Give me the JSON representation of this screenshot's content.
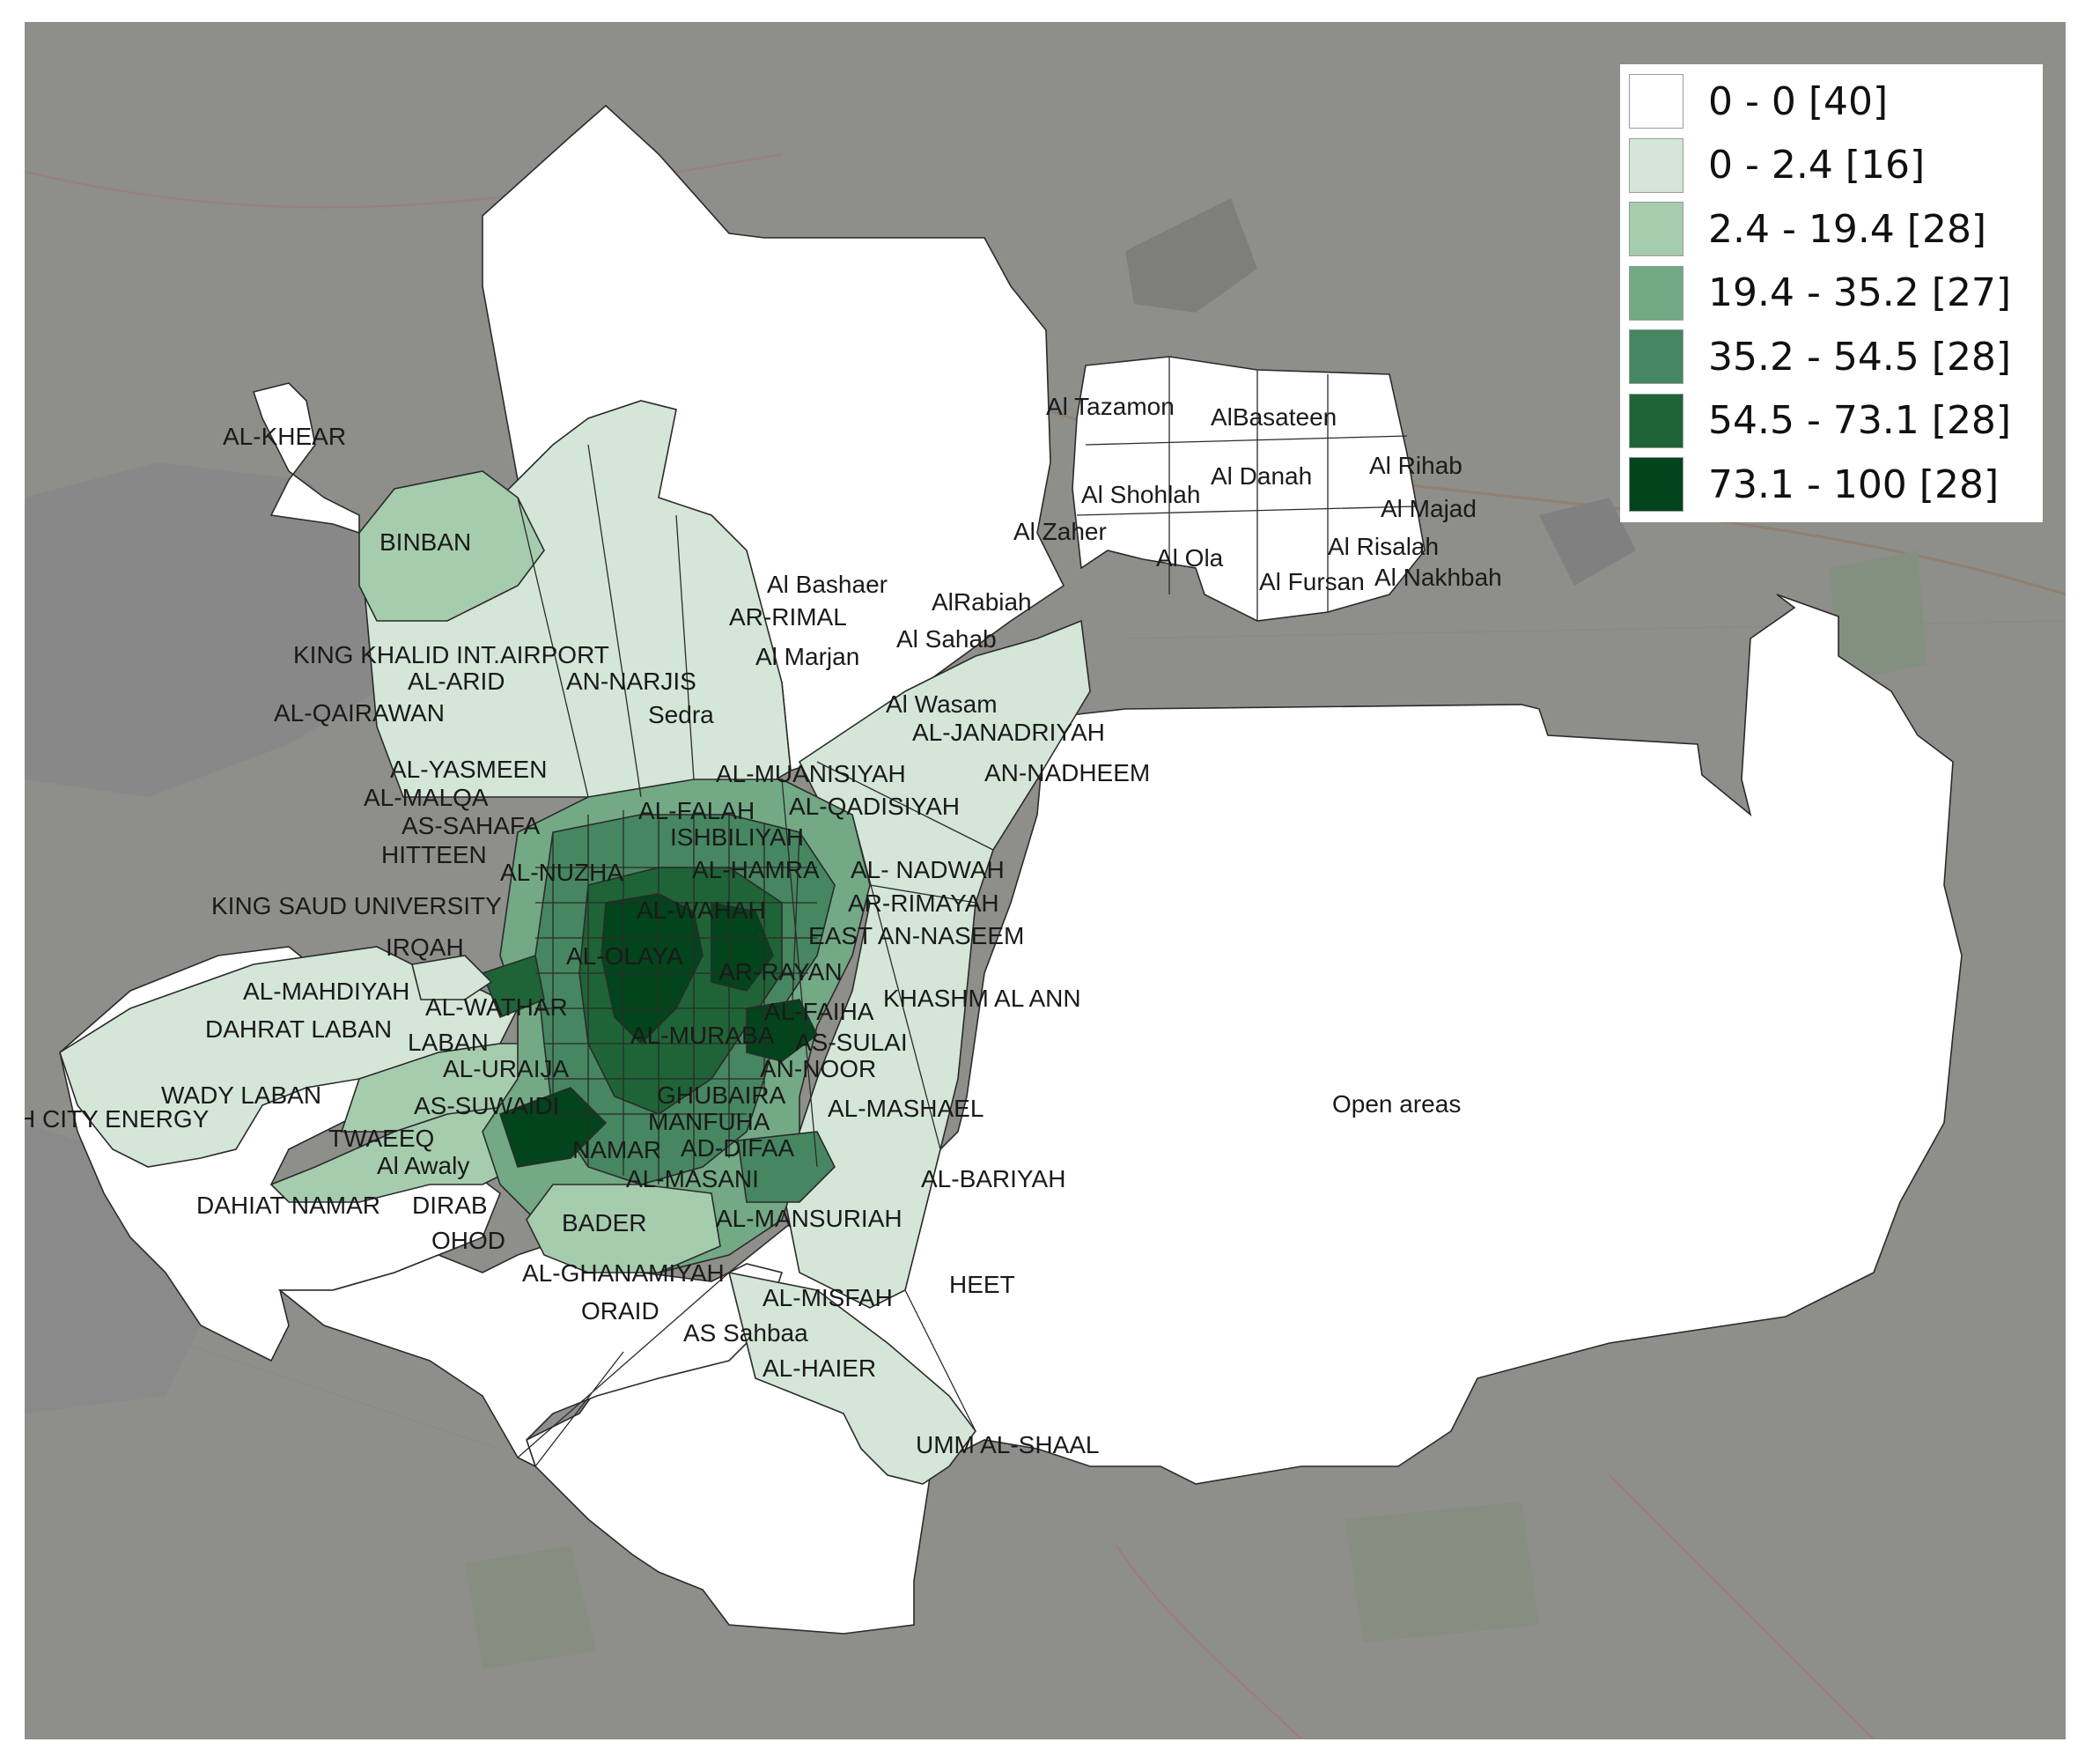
{
  "legend": {
    "items": [
      {
        "label": "0 - 0 [40]",
        "color": "#ffffff"
      },
      {
        "label": "0 - 2.4 [16]",
        "color": "#d4e6d8"
      },
      {
        "label": "2.4 - 19.4 [28]",
        "color": "#a6ccae"
      },
      {
        "label": "19.4 - 35.2 [27]",
        "color": "#73a985"
      },
      {
        "label": "35.2 - 54.5 [28]",
        "color": "#468660"
      },
      {
        "label": "54.5 - 73.1 [28]",
        "color": "#1e6436"
      },
      {
        "label": "73.1 - 100 [28]",
        "color": "#02441b"
      }
    ]
  },
  "districts": {
    "al_khear": "AL-KHEAR",
    "binban": "BINBAN",
    "king_khalid_airport": "KING KHALID INT.AIRPORT",
    "al_arid": "AL-ARID",
    "an_narjis": "AN-NARJIS",
    "al_qairawan": "AL-QAIRAWAN",
    "sedra": "Sedra",
    "al_yasmeen": "AL-YASMEEN",
    "al_malqa": "AL-MALQA",
    "as_sahafa": "AS-SAHAFA",
    "hitteen": "HITTEEN",
    "al_nuzha": "AL-NUZHA",
    "al_falah": "AL-FALAH",
    "ishbiliyah": "ISHBILIYAH",
    "al_hamra": "AL-HAMRA",
    "al_muanisiyah": "AL-MUANISIYAH",
    "al_qadisiyah": "AL-QADISIYAH",
    "an_nadheem": "AN-NADHEEM",
    "al_janadriyah": "AL-JANADRIYAH",
    "al_wasam": "Al Wasam",
    "al_sahab": "Al Sahab",
    "al_marjan": "Al Marjan",
    "ar_rimal": "AR-RIMAL",
    "al_bashaer": "Al Bashaer",
    "al_rabiah": "AlRabiah",
    "al_zaher": "Al Zaher",
    "al_tazamon": "Al Tazamon",
    "al_basateen": "AlBasateen",
    "al_shohlah": "Al Shohlah",
    "al_danah": "Al Danah",
    "al_rihab": "Al Rihab",
    "al_majad": "Al Majad",
    "al_ola": "Al Ola",
    "al_risalah": "Al Risalah",
    "al_fursan": "Al Fursan",
    "al_nakhbah": "Al Nakhbah",
    "king_saud_university": "KING SAUD UNIVERSITY",
    "irqah": "IRQAH",
    "al_mahdiyah": "AL-MAHDIYAH",
    "dahrat_laban": "DAHRAT LABAN",
    "laban": "LABAN",
    "al_wathar": "AL-WATHAR",
    "al_uraija": "AL-URAIJA",
    "wady_laban": "WADY LABAN",
    "city_energy": "H CITY ENERGY",
    "as_suwaidi": "AS-SUWAIDI",
    "twaeeq": "TWAEEQ",
    "al_awaly": "Al Awaly",
    "dahiat_namar": "DAHIAT NAMAR",
    "dirab": "DIRAB",
    "ohod": "OHOD",
    "al_olaya": "AL-OLAYA",
    "al_wahah": "AL-WAHAH",
    "ar_rayan": "AR-RAYAN",
    "al_nadwah": "AL- NADWAH",
    "ar_rimayah": "AR-RIMAYAH",
    "east_an_naseem": "EAST AN-NASEEM",
    "khashm_al_ann": "KHASHM AL ANN",
    "al_faiha": "AL-FAIHA",
    "as_sulai": "AS-SULAI",
    "an_noor": "AN-NOOR",
    "al_muraba": "AL-MURABA",
    "ghubaira": "GHUBAIRA",
    "manfuha": "MANFUHA",
    "namar": "NAMAR",
    "ad_difaa": "AD-DIFAA",
    "al_masani": "AL-MASANI",
    "al_mashael": "AL-MASHAEL",
    "al_bariyah": "AL-BARIYAH",
    "bader": "BADER",
    "al_mansuriah": "AL-MANSURIAH",
    "al_ghanamiyah": "AL-GHANAMIYAH",
    "oraid": "ORAID",
    "as_sahbaa": "AS Sahbaa",
    "al_misfah": "AL-MISFAH",
    "heet": "HEET",
    "al_haier": "AL-HAIER",
    "umm_al_shaal": "UMM AL-SHAAL",
    "open_areas": "Open areas"
  }
}
